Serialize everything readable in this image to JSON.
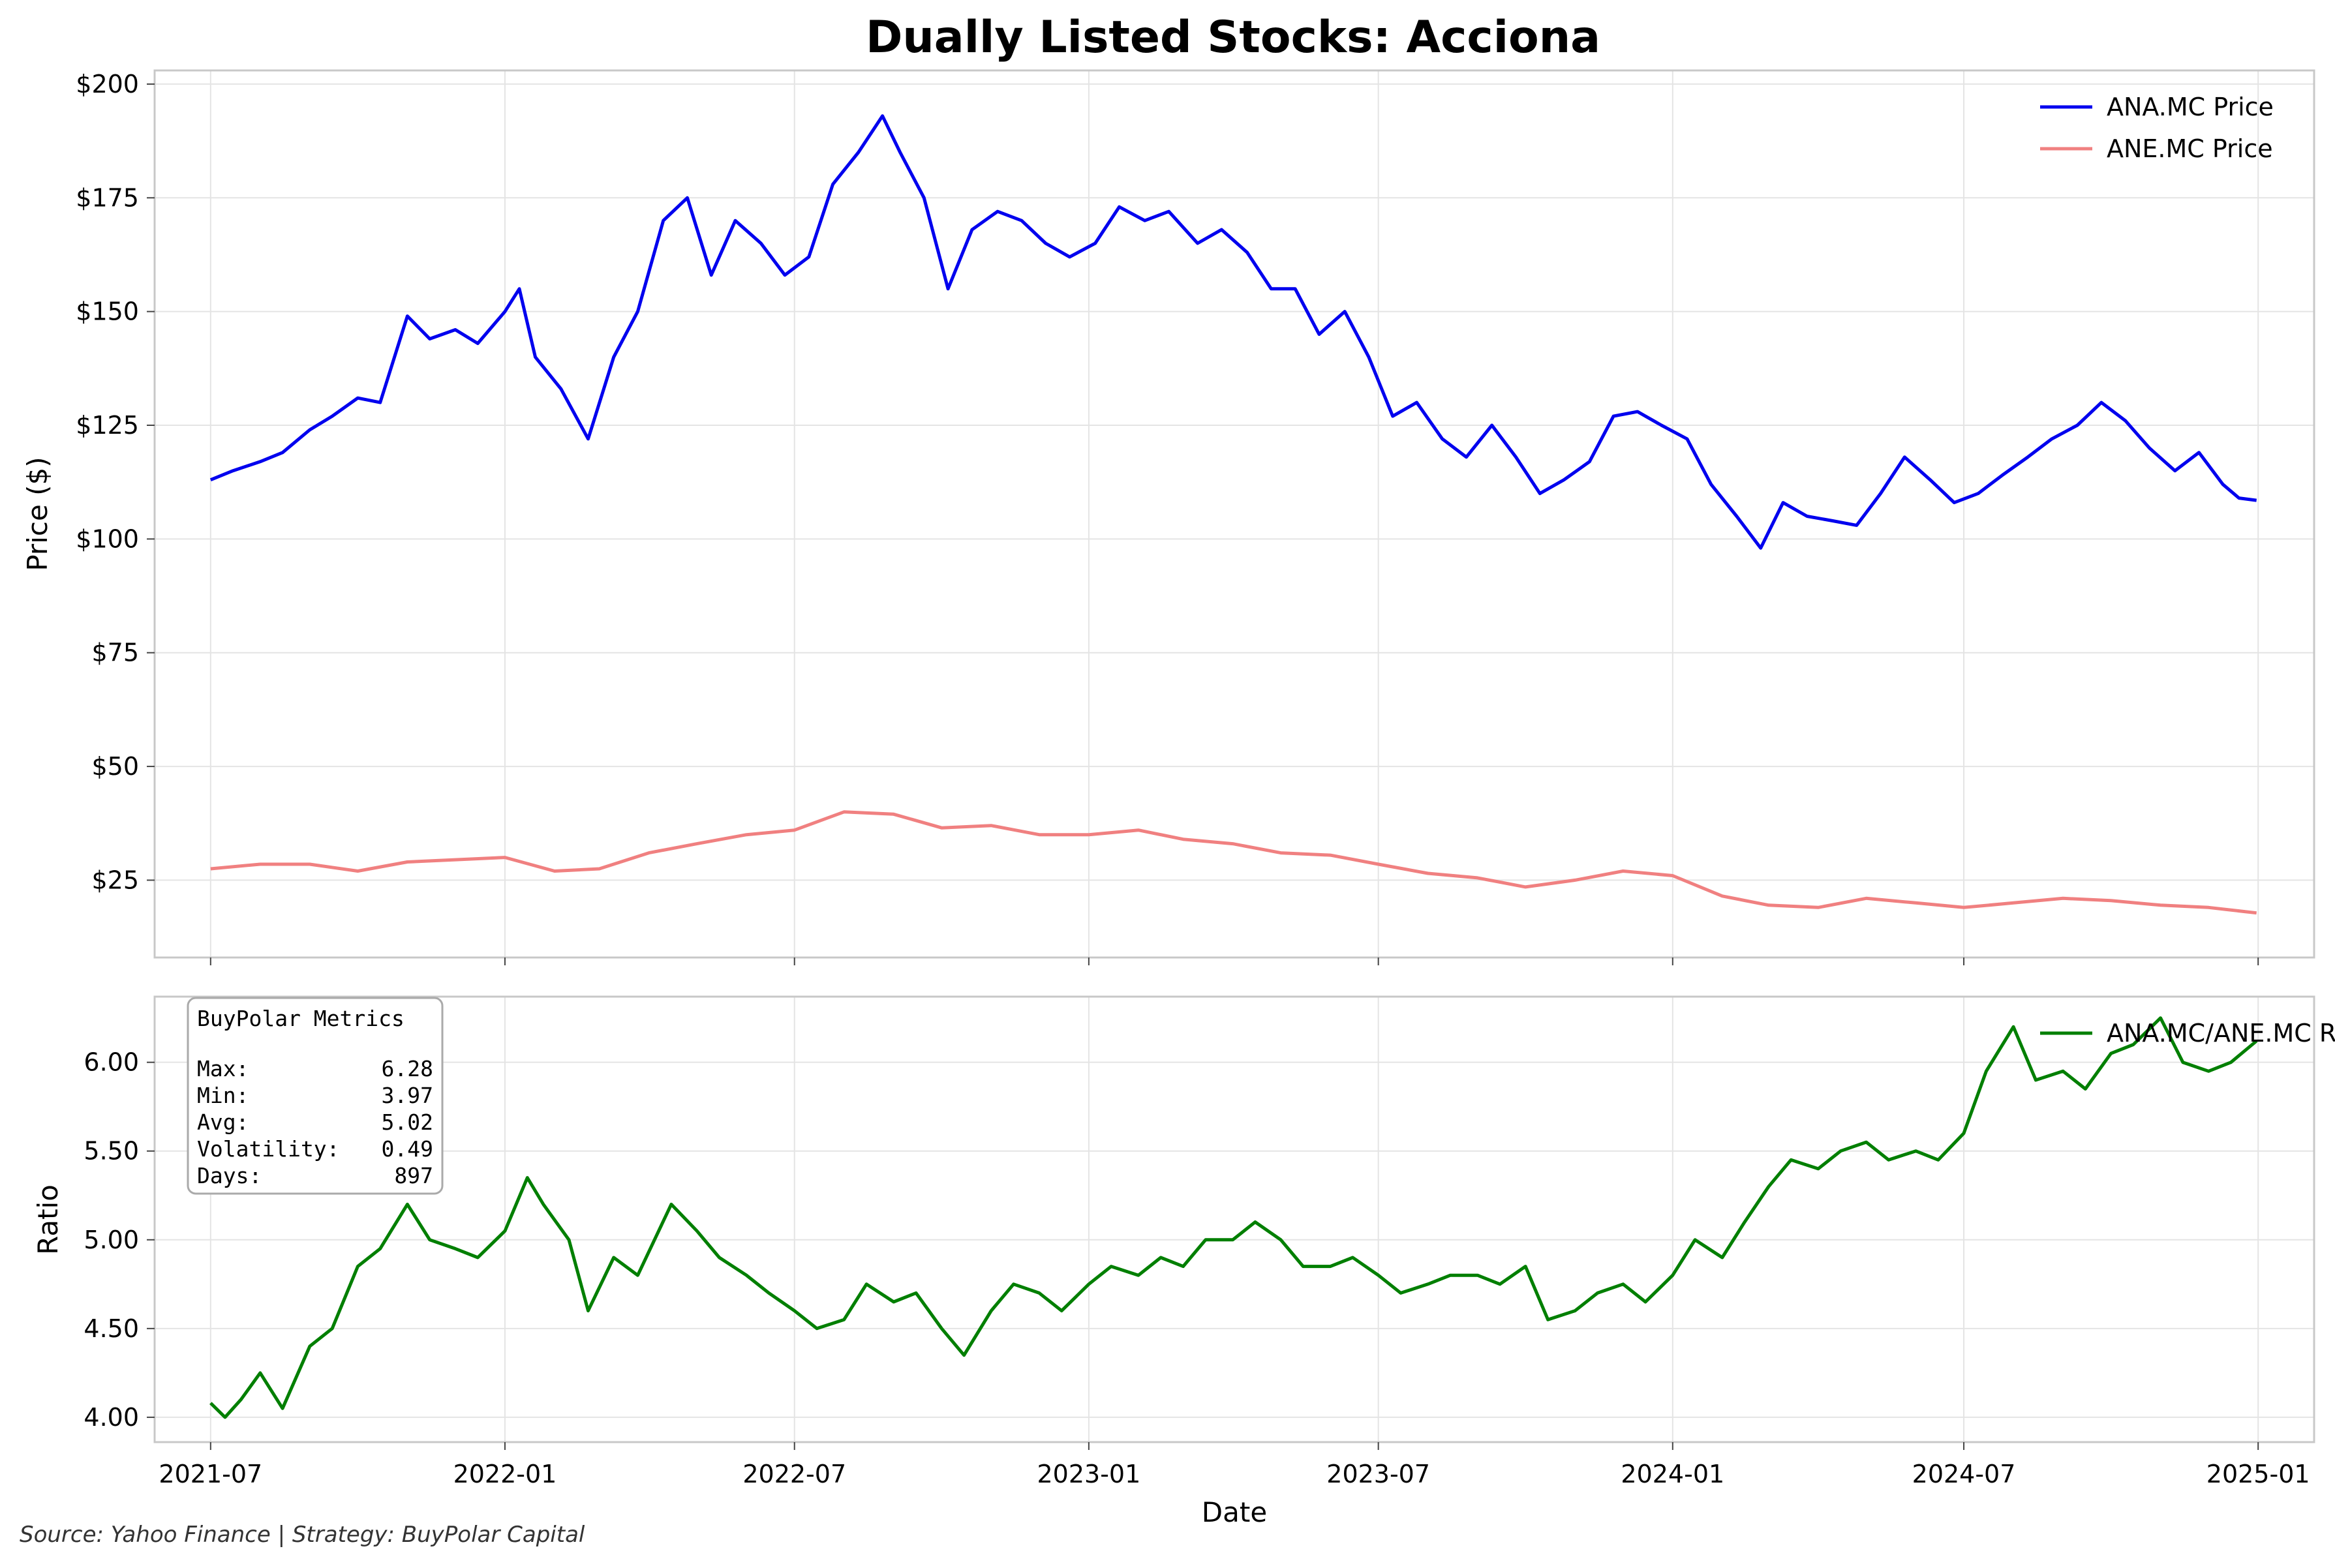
{
  "footer": {
    "source": "Source: Yahoo Finance | Strategy: BuyPolar Capital"
  },
  "chart_data": [
    {
      "type": "line",
      "title": "Dually Listed Stocks: Acciona",
      "xlabel": "",
      "ylabel": "Price ($)",
      "xlim": [
        "2021-05-27",
        "2025-02-05"
      ],
      "ylim": [
        8,
        203
      ],
      "x_ticks": [
        "2021-07",
        "2022-01",
        "2022-07",
        "2023-01",
        "2023-07",
        "2024-01",
        "2024-07",
        "2025-01"
      ],
      "y_ticks": [
        25,
        50,
        75,
        100,
        125,
        150,
        175,
        200
      ],
      "y_tick_labels": [
        "$25",
        "$50",
        "$75",
        "$100",
        "$125",
        "$150",
        "$175",
        "$200"
      ],
      "grid": true,
      "legend_position": "top-right",
      "series": [
        {
          "name": "ANA.MC Price",
          "color": "#0000ee",
          "points": [
            [
              "2021-07-01",
              113
            ],
            [
              "2021-07-15",
              115
            ],
            [
              "2021-08-01",
              117
            ],
            [
              "2021-08-15",
              119
            ],
            [
              "2021-09-01",
              124
            ],
            [
              "2021-09-15",
              127
            ],
            [
              "2021-10-01",
              131
            ],
            [
              "2021-10-15",
              130
            ],
            [
              "2021-11-01",
              149
            ],
            [
              "2021-11-15",
              144
            ],
            [
              "2021-12-01",
              146
            ],
            [
              "2021-12-15",
              143
            ],
            [
              "2022-01-01",
              150
            ],
            [
              "2022-01-10",
              155
            ],
            [
              "2022-01-20",
              140
            ],
            [
              "2022-02-05",
              133
            ],
            [
              "2022-02-22",
              122
            ],
            [
              "2022-03-10",
              140
            ],
            [
              "2022-03-25",
              150
            ],
            [
              "2022-04-10",
              170
            ],
            [
              "2022-04-25",
              175
            ],
            [
              "2022-05-10",
              158
            ],
            [
              "2022-05-25",
              170
            ],
            [
              "2022-06-10",
              165
            ],
            [
              "2022-06-25",
              158
            ],
            [
              "2022-07-10",
              162
            ],
            [
              "2022-07-25",
              178
            ],
            [
              "2022-08-10",
              185
            ],
            [
              "2022-08-25",
              193
            ],
            [
              "2022-09-05",
              185
            ],
            [
              "2022-09-20",
              175
            ],
            [
              "2022-10-05",
              155
            ],
            [
              "2022-10-20",
              168
            ],
            [
              "2022-11-05",
              172
            ],
            [
              "2022-11-20",
              170
            ],
            [
              "2022-12-05",
              165
            ],
            [
              "2022-12-20",
              162
            ],
            [
              "2023-01-05",
              165
            ],
            [
              "2023-01-20",
              173
            ],
            [
              "2023-02-05",
              170
            ],
            [
              "2023-02-20",
              172
            ],
            [
              "2023-03-10",
              165
            ],
            [
              "2023-03-25",
              168
            ],
            [
              "2023-04-10",
              163
            ],
            [
              "2023-04-25",
              155
            ],
            [
              "2023-05-10",
              155
            ],
            [
              "2023-05-25",
              145
            ],
            [
              "2023-06-10",
              150
            ],
            [
              "2023-06-25",
              140
            ],
            [
              "2023-07-10",
              127
            ],
            [
              "2023-07-25",
              130
            ],
            [
              "2023-08-10",
              122
            ],
            [
              "2023-08-25",
              118
            ],
            [
              "2023-09-10",
              125
            ],
            [
              "2023-09-25",
              118
            ],
            [
              "2023-10-10",
              110
            ],
            [
              "2023-10-25",
              113
            ],
            [
              "2023-11-10",
              117
            ],
            [
              "2023-11-25",
              127
            ],
            [
              "2023-12-10",
              128
            ],
            [
              "2023-12-25",
              125
            ],
            [
              "2024-01-10",
              122
            ],
            [
              "2024-01-25",
              112
            ],
            [
              "2024-02-10",
              105
            ],
            [
              "2024-02-25",
              98
            ],
            [
              "2024-03-10",
              108
            ],
            [
              "2024-03-25",
              105
            ],
            [
              "2024-04-10",
              104
            ],
            [
              "2024-04-25",
              103
            ],
            [
              "2024-05-10",
              110
            ],
            [
              "2024-05-25",
              118
            ],
            [
              "2024-06-10",
              113
            ],
            [
              "2024-06-25",
              108
            ],
            [
              "2024-07-10",
              110
            ],
            [
              "2024-07-25",
              114
            ],
            [
              "2024-08-10",
              118
            ],
            [
              "2024-08-25",
              122
            ],
            [
              "2024-09-10",
              125
            ],
            [
              "2024-09-25",
              130
            ],
            [
              "2024-10-10",
              126
            ],
            [
              "2024-10-25",
              120
            ],
            [
              "2024-11-10",
              115
            ],
            [
              "2024-11-25",
              119
            ],
            [
              "2024-12-10",
              112
            ],
            [
              "2024-12-20",
              109
            ],
            [
              "2024-12-31",
              108.5
            ]
          ]
        },
        {
          "name": "ANE.MC Price",
          "color": "#f08080",
          "points": [
            [
              "2021-07-01",
              27.5
            ],
            [
              "2021-08-01",
              28.5
            ],
            [
              "2021-09-01",
              28.5
            ],
            [
              "2021-10-01",
              27
            ],
            [
              "2021-11-01",
              29
            ],
            [
              "2021-12-01",
              29.5
            ],
            [
              "2022-01-01",
              30
            ],
            [
              "2022-02-01",
              27
            ],
            [
              "2022-03-01",
              27.5
            ],
            [
              "2022-04-01",
              31
            ],
            [
              "2022-05-01",
              33
            ],
            [
              "2022-06-01",
              35
            ],
            [
              "2022-07-01",
              36
            ],
            [
              "2022-08-01",
              40
            ],
            [
              "2022-09-01",
              39.5
            ],
            [
              "2022-10-01",
              36.5
            ],
            [
              "2022-11-01",
              37
            ],
            [
              "2022-12-01",
              35
            ],
            [
              "2023-01-01",
              35
            ],
            [
              "2023-02-01",
              36
            ],
            [
              "2023-03-01",
              34
            ],
            [
              "2023-04-01",
              33
            ],
            [
              "2023-05-01",
              31
            ],
            [
              "2023-06-01",
              30.5
            ],
            [
              "2023-07-01",
              28.5
            ],
            [
              "2023-08-01",
              26.5
            ],
            [
              "2023-09-01",
              25.5
            ],
            [
              "2023-10-01",
              23.5
            ],
            [
              "2023-11-01",
              25
            ],
            [
              "2023-12-01",
              27
            ],
            [
              "2024-01-01",
              26
            ],
            [
              "2024-02-01",
              21.5
            ],
            [
              "2024-03-01",
              19.5
            ],
            [
              "2024-04-01",
              19
            ],
            [
              "2024-05-01",
              21
            ],
            [
              "2024-06-01",
              20
            ],
            [
              "2024-07-01",
              19
            ],
            [
              "2024-08-01",
              20
            ],
            [
              "2024-09-01",
              21
            ],
            [
              "2024-10-01",
              20.5
            ],
            [
              "2024-11-01",
              19.5
            ],
            [
              "2024-12-01",
              19
            ],
            [
              "2024-12-31",
              17.8
            ]
          ]
        }
      ]
    },
    {
      "type": "line",
      "title": "",
      "xlabel": "Date",
      "ylabel": "Ratio",
      "xlim": [
        "2021-05-27",
        "2025-02-05"
      ],
      "ylim": [
        3.86,
        6.37
      ],
      "x_ticks": [
        "2021-07",
        "2022-01",
        "2022-07",
        "2023-01",
        "2023-07",
        "2024-01",
        "2024-07",
        "2025-01"
      ],
      "y_ticks": [
        4.0,
        4.5,
        5.0,
        5.5,
        6.0
      ],
      "y_tick_labels": [
        "4.00",
        "4.50",
        "5.00",
        "5.50",
        "6.00"
      ],
      "grid": true,
      "legend_position": "top-right",
      "series": [
        {
          "name": "ANA.MC/ANE.MC Ratio",
          "color": "#007f00",
          "points": [
            [
              "2021-07-01",
              4.08
            ],
            [
              "2021-07-10",
              4.0
            ],
            [
              "2021-07-20",
              4.1
            ],
            [
              "2021-08-01",
              4.25
            ],
            [
              "2021-08-15",
              4.05
            ],
            [
              "2021-09-01",
              4.4
            ],
            [
              "2021-09-15",
              4.5
            ],
            [
              "2021-10-01",
              4.85
            ],
            [
              "2021-10-15",
              4.95
            ],
            [
              "2021-11-01",
              5.2
            ],
            [
              "2021-11-15",
              5.0
            ],
            [
              "2021-12-01",
              4.95
            ],
            [
              "2021-12-15",
              4.9
            ],
            [
              "2022-01-01",
              5.05
            ],
            [
              "2022-01-15",
              5.35
            ],
            [
              "2022-01-25",
              5.2
            ],
            [
              "2022-02-10",
              5.0
            ],
            [
              "2022-02-22",
              4.6
            ],
            [
              "2022-03-10",
              4.9
            ],
            [
              "2022-03-25",
              4.8
            ],
            [
              "2022-04-15",
              5.2
            ],
            [
              "2022-05-01",
              5.05
            ],
            [
              "2022-05-15",
              4.9
            ],
            [
              "2022-06-01",
              4.8
            ],
            [
              "2022-06-15",
              4.7
            ],
            [
              "2022-07-01",
              4.6
            ],
            [
              "2022-07-15",
              4.5
            ],
            [
              "2022-08-01",
              4.55
            ],
            [
              "2022-08-15",
              4.75
            ],
            [
              "2022-09-01",
              4.65
            ],
            [
              "2022-09-15",
              4.7
            ],
            [
              "2022-10-01",
              4.5
            ],
            [
              "2022-10-15",
              4.35
            ],
            [
              "2022-11-01",
              4.6
            ],
            [
              "2022-11-15",
              4.75
            ],
            [
              "2022-12-01",
              4.7
            ],
            [
              "2022-12-15",
              4.6
            ],
            [
              "2023-01-01",
              4.75
            ],
            [
              "2023-01-15",
              4.85
            ],
            [
              "2023-02-01",
              4.8
            ],
            [
              "2023-02-15",
              4.9
            ],
            [
              "2023-03-01",
              4.85
            ],
            [
              "2023-03-15",
              5.0
            ],
            [
              "2023-04-01",
              5.0
            ],
            [
              "2023-04-15",
              5.1
            ],
            [
              "2023-05-01",
              5.0
            ],
            [
              "2023-05-15",
              4.85
            ],
            [
              "2023-06-01",
              4.85
            ],
            [
              "2023-06-15",
              4.9
            ],
            [
              "2023-07-01",
              4.8
            ],
            [
              "2023-07-15",
              4.7
            ],
            [
              "2023-08-01",
              4.75
            ],
            [
              "2023-08-15",
              4.8
            ],
            [
              "2023-09-01",
              4.8
            ],
            [
              "2023-09-15",
              4.75
            ],
            [
              "2023-10-01",
              4.85
            ],
            [
              "2023-10-15",
              4.55
            ],
            [
              "2023-11-01",
              4.6
            ],
            [
              "2023-11-15",
              4.7
            ],
            [
              "2023-12-01",
              4.75
            ],
            [
              "2023-12-15",
              4.65
            ],
            [
              "2024-01-01",
              4.8
            ],
            [
              "2024-01-15",
              5.0
            ],
            [
              "2024-02-01",
              4.9
            ],
            [
              "2024-02-15",
              5.1
            ],
            [
              "2024-03-01",
              5.3
            ],
            [
              "2024-03-15",
              5.45
            ],
            [
              "2024-04-01",
              5.4
            ],
            [
              "2024-04-15",
              5.5
            ],
            [
              "2024-05-01",
              5.55
            ],
            [
              "2024-05-15",
              5.45
            ],
            [
              "2024-06-01",
              5.5
            ],
            [
              "2024-06-15",
              5.45
            ],
            [
              "2024-07-01",
              5.6
            ],
            [
              "2024-07-15",
              5.95
            ],
            [
              "2024-08-01",
              6.2
            ],
            [
              "2024-08-15",
              5.9
            ],
            [
              "2024-09-01",
              5.95
            ],
            [
              "2024-09-15",
              5.85
            ],
            [
              "2024-10-01",
              6.05
            ],
            [
              "2024-10-15",
              6.1
            ],
            [
              "2024-11-01",
              6.25
            ],
            [
              "2024-11-15",
              6.0
            ],
            [
              "2024-12-01",
              5.95
            ],
            [
              "2024-12-15",
              6.0
            ],
            [
              "2024-12-31",
              6.12
            ]
          ]
        }
      ],
      "metrics_box": {
        "title": "BuyPolar Metrics",
        "rows": [
          {
            "label": "Max:",
            "value": "6.28"
          },
          {
            "label": "Min:",
            "value": "3.97"
          },
          {
            "label": "Avg:",
            "value": "5.02"
          },
          {
            "label": "Volatility:",
            "value": "0.49"
          },
          {
            "label": "Days:",
            "value": "897"
          }
        ]
      }
    }
  ]
}
